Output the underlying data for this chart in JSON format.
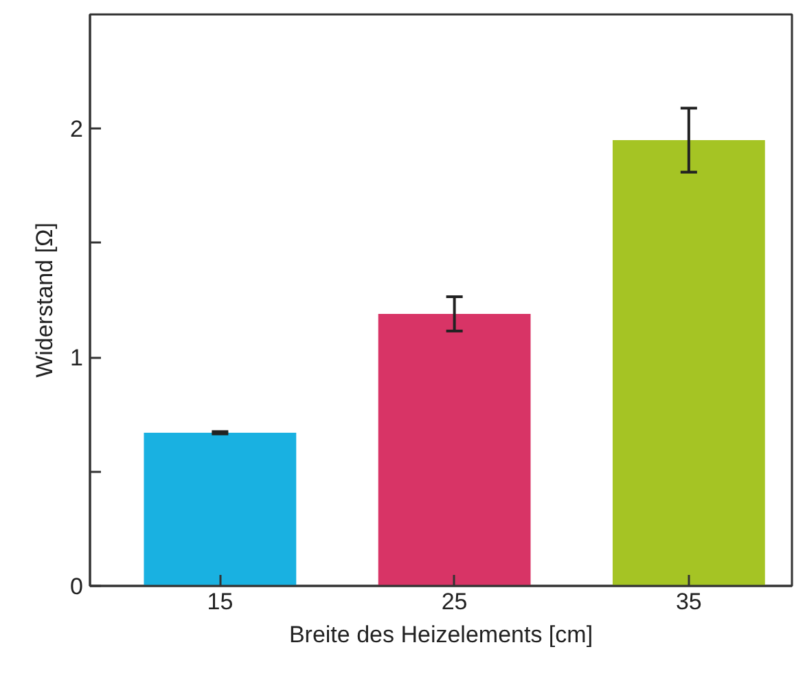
{
  "chart_data": {
    "type": "bar",
    "xlabel": "Breite des Heizelements [cm]",
    "ylabel": "Widerstand [Ω]",
    "categories": [
      "15",
      "25",
      "35"
    ],
    "values": [
      0.67,
      1.19,
      1.95
    ],
    "errors": [
      0.005,
      0.075,
      0.14
    ],
    "colors": [
      "#19b1e1",
      "#d83466",
      "#a5c424"
    ],
    "ylim": [
      0,
      2.5
    ],
    "yticks": [
      0,
      {
        "value": 0.5,
        "label": null
      },
      1,
      {
        "value": 1.5,
        "label": null
      },
      2
    ],
    "grid": false
  }
}
